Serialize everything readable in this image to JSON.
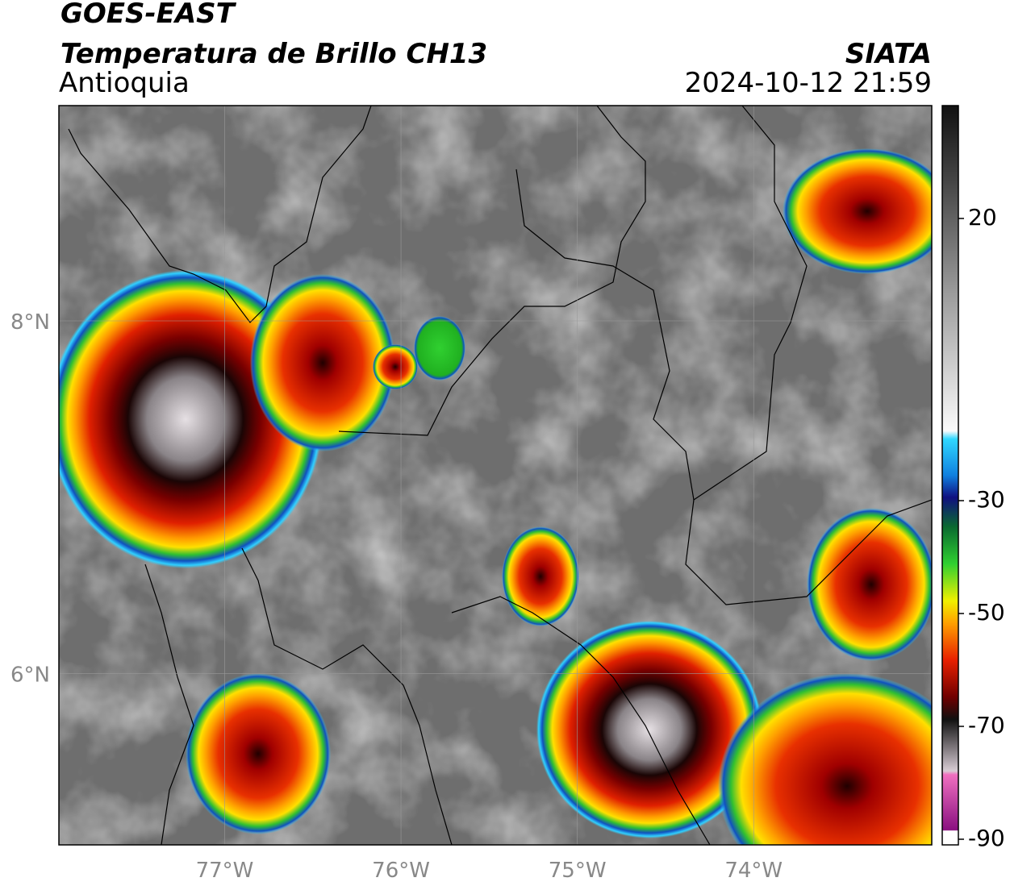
{
  "header": {
    "satellite": "GOES-EAST",
    "product": "Temperatura de Brillo CH13",
    "region": "Antioquia",
    "source": "SIATA",
    "datetime": "2024-10-12 21:59"
  },
  "map": {
    "lonlim": [
      -77.94,
      -72.99
    ],
    "latlim": [
      5.03,
      9.22
    ],
    "lonticks": [
      {
        "value": -77,
        "label": "77°W"
      },
      {
        "value": -76,
        "label": "76°W"
      },
      {
        "value": -75,
        "label": "75°W"
      },
      {
        "value": -74,
        "label": "74°W"
      }
    ],
    "latticks": [
      {
        "value": 8,
        "label": "8°N"
      },
      {
        "value": 6,
        "label": "6°N"
      }
    ],
    "grid": true
  },
  "colorbar": {
    "lim": [
      -91,
      40
    ],
    "ticks": [
      20,
      -30,
      -50,
      -70,
      -90
    ]
  }
}
